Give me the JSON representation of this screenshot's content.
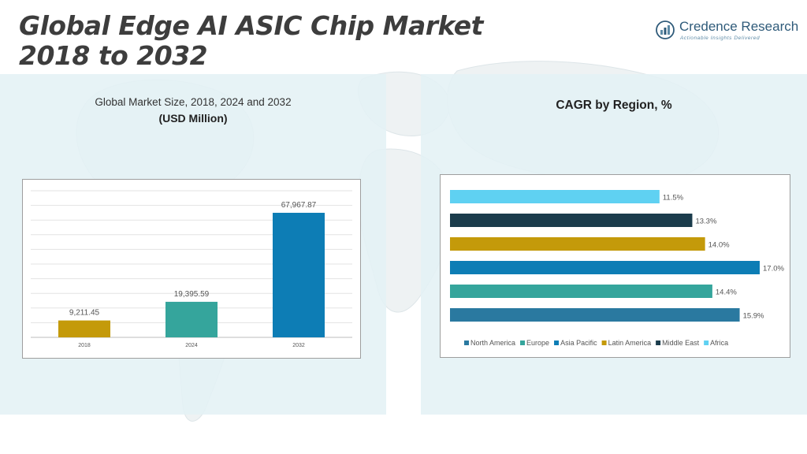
{
  "header": {
    "title_line1": "Global Edge AI ASIC Chip Market",
    "title_line2": "2018 to 2032"
  },
  "logo": {
    "name": "Credence Research",
    "tagline": "Actionable Insights Delivered"
  },
  "left_panel": {
    "subtitle": "Global Market Size, 2018, 2024 and 2032",
    "unit": "(USD Million)"
  },
  "right_panel": {
    "title": "CAGR by Region, %"
  },
  "colors": {
    "panel_bg": "#e4f1f5",
    "title_text": "#3d3d3d",
    "bar_2018": "#c49a0a",
    "bar_2024": "#35a59c",
    "bar_2032": "#0d7db5"
  },
  "chart_data": [
    {
      "type": "bar",
      "categories": [
        "2018",
        "2024",
        "2032"
      ],
      "values": [
        9211.45,
        19395.59,
        67967.87
      ],
      "value_labels": [
        "9,211.45",
        "19,395.59",
        "67,967.87"
      ],
      "colors": [
        "#c49a0a",
        "#35a59c",
        "#0d7db5"
      ],
      "ylim": [
        0,
        80000
      ],
      "gridlines": true,
      "title": "",
      "xlabel": "",
      "ylabel": ""
    },
    {
      "type": "bar",
      "orientation": "horizontal",
      "categories": [
        "North America",
        "Europe",
        "Asia Pacific",
        "Latin America",
        "Middle East",
        "Africa"
      ],
      "values": [
        15.9,
        14.4,
        17.0,
        14.0,
        13.3,
        11.5
      ],
      "value_labels": [
        "15.9%",
        "14.4%",
        "17.0%",
        "14.0%",
        "13.3%",
        "11.5%"
      ],
      "colors": [
        "#2a79a0",
        "#35a59c",
        "#0d7db5",
        "#c49a0a",
        "#1b3c4c",
        "#5fd1f2"
      ],
      "xlim": [
        0,
        17.0
      ],
      "gridlines": false,
      "legend": "bottom",
      "title": "",
      "xlabel": "",
      "ylabel": ""
    }
  ]
}
